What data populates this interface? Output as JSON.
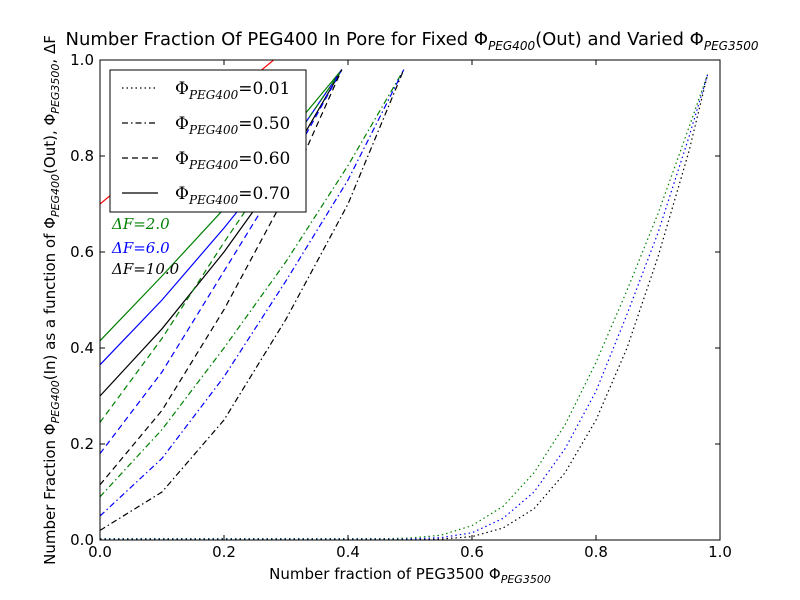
{
  "chart_data": {
    "type": "line",
    "title": {
      "text": "Number Fraction Of PEG400 In Pore for Fixed Φ",
      "sub1": "PEG400",
      "mid": "(Out) and Varied Φ",
      "sub2": "PEG3500"
    },
    "xlabel": {
      "text": "Number fraction of PEG3500 Φ",
      "sub": "PEG3500"
    },
    "ylabel": {
      "part1": "Number Fraction Φ",
      "sub1": "PEG400",
      "part2": "(In) as a function of Φ",
      "sub2": "PEG400",
      "part3": "(Out), Φ",
      "sub3": "PEG3500",
      "part4": ", ΔF"
    },
    "xlim": [
      0.0,
      1.0
    ],
    "ylim": [
      0.0,
      1.0
    ],
    "xticks": [
      "0.0",
      "0.2",
      "0.4",
      "0.6",
      "0.8",
      "1.0"
    ],
    "yticks": [
      "0.0",
      "0.2",
      "0.4",
      "0.6",
      "0.8",
      "1.0"
    ],
    "legend": {
      "placement": "top-left",
      "entries": [
        {
          "label": "Φ",
          "sub": "PEG400",
          "value": "=0.01",
          "dash": "dotted"
        },
        {
          "label": "Φ",
          "sub": "PEG400",
          "value": "=0.50",
          "dash": "dashdot"
        },
        {
          "label": "Φ",
          "sub": "PEG400",
          "value": "=0.60",
          "dash": "dashed"
        },
        {
          "label": "Φ",
          "sub": "PEG400",
          "value": "=0.70",
          "dash": "solid"
        }
      ]
    },
    "annotations": [
      {
        "text": "ΔF=2.0",
        "color": "#008000"
      },
      {
        "text": "ΔF=6.0",
        "color": "#0000ff"
      },
      {
        "text": "ΔF=10.0",
        "color": "#000000"
      }
    ],
    "colors": {
      "dF2": "#008000",
      "dF6": "#0000ff",
      "dF10": "#000000",
      "ref": "#ff0000"
    },
    "series": [
      {
        "style": "solid",
        "color": "#ff0000",
        "x": [
          0.0,
          0.28
        ],
        "y": [
          0.7,
          1.0
        ]
      },
      {
        "style": "solid",
        "color": "#008000",
        "x": [
          0.0,
          0.1,
          0.2,
          0.3,
          0.39
        ],
        "y": [
          0.415,
          0.55,
          0.69,
          0.84,
          0.98
        ]
      },
      {
        "style": "solid",
        "color": "#0000ff",
        "x": [
          0.0,
          0.1,
          0.2,
          0.3,
          0.39
        ],
        "y": [
          0.365,
          0.5,
          0.65,
          0.81,
          0.98
        ]
      },
      {
        "style": "solid",
        "color": "#000000",
        "x": [
          0.0,
          0.1,
          0.2,
          0.3,
          0.39
        ],
        "y": [
          0.3,
          0.44,
          0.6,
          0.78,
          0.98
        ]
      },
      {
        "style": "dashed",
        "color": "#008000",
        "x": [
          0.0,
          0.1,
          0.2,
          0.3,
          0.39
        ],
        "y": [
          0.245,
          0.42,
          0.62,
          0.81,
          0.98
        ]
      },
      {
        "style": "dashed",
        "color": "#0000ff",
        "x": [
          0.0,
          0.1,
          0.2,
          0.3,
          0.39
        ],
        "y": [
          0.18,
          0.35,
          0.56,
          0.77,
          0.98
        ]
      },
      {
        "style": "dashed",
        "color": "#000000",
        "x": [
          0.0,
          0.1,
          0.2,
          0.3,
          0.39
        ],
        "y": [
          0.115,
          0.27,
          0.48,
          0.72,
          0.98
        ]
      },
      {
        "style": "dashdot",
        "color": "#008000",
        "x": [
          0.0,
          0.1,
          0.2,
          0.3,
          0.4,
          0.49
        ],
        "y": [
          0.09,
          0.23,
          0.4,
          0.58,
          0.78,
          0.98
        ]
      },
      {
        "style": "dashdot",
        "color": "#0000ff",
        "x": [
          0.0,
          0.1,
          0.2,
          0.3,
          0.4,
          0.49
        ],
        "y": [
          0.05,
          0.17,
          0.34,
          0.54,
          0.75,
          0.98
        ]
      },
      {
        "style": "dashdot",
        "color": "#000000",
        "x": [
          0.0,
          0.1,
          0.2,
          0.3,
          0.4,
          0.49
        ],
        "y": [
          0.02,
          0.1,
          0.25,
          0.46,
          0.7,
          0.98
        ]
      },
      {
        "style": "dotted",
        "color": "#008000",
        "x": [
          0.0,
          0.2,
          0.4,
          0.5,
          0.55,
          0.6,
          0.65,
          0.7,
          0.75,
          0.8,
          0.85,
          0.9,
          0.95,
          0.98
        ],
        "y": [
          0.0,
          0.0,
          0.001,
          0.004,
          0.01,
          0.03,
          0.07,
          0.14,
          0.24,
          0.37,
          0.52,
          0.68,
          0.86,
          0.97
        ]
      },
      {
        "style": "dotted",
        "color": "#0000ff",
        "x": [
          0.0,
          0.2,
          0.4,
          0.5,
          0.55,
          0.6,
          0.65,
          0.7,
          0.75,
          0.8,
          0.85,
          0.9,
          0.95,
          0.98
        ],
        "y": [
          0.0,
          0.0,
          0.0,
          0.002,
          0.005,
          0.015,
          0.045,
          0.1,
          0.19,
          0.31,
          0.47,
          0.64,
          0.84,
          0.97
        ]
      },
      {
        "style": "dotted",
        "color": "#000000",
        "x": [
          0.0,
          0.2,
          0.4,
          0.5,
          0.55,
          0.6,
          0.65,
          0.7,
          0.75,
          0.8,
          0.85,
          0.9,
          0.95,
          0.98
        ],
        "y": [
          0.0,
          0.0,
          0.0,
          0.0,
          0.002,
          0.007,
          0.025,
          0.065,
          0.14,
          0.25,
          0.4,
          0.59,
          0.81,
          0.97
        ]
      },
      {
        "style": "dotted",
        "color": "#008000",
        "x": [
          0.0,
          0.1,
          0.2,
          0.3,
          0.4,
          0.49
        ],
        "y": [
          0.003,
          0.003,
          0.003,
          0.003,
          0.003,
          0.003
        ]
      },
      {
        "style": "dotted",
        "color": "#0000ff",
        "x": [
          0.0,
          0.1,
          0.2,
          0.3,
          0.4,
          0.49
        ],
        "y": [
          0.0015,
          0.0015,
          0.0015,
          0.0015,
          0.0015,
          0.0015
        ]
      },
      {
        "style": "dotted",
        "color": "#000000",
        "x": [
          0.0,
          0.1,
          0.2,
          0.3,
          0.4,
          0.49
        ],
        "y": [
          0.0005,
          0.0005,
          0.0005,
          0.0005,
          0.0005,
          0.0005
        ]
      }
    ]
  }
}
